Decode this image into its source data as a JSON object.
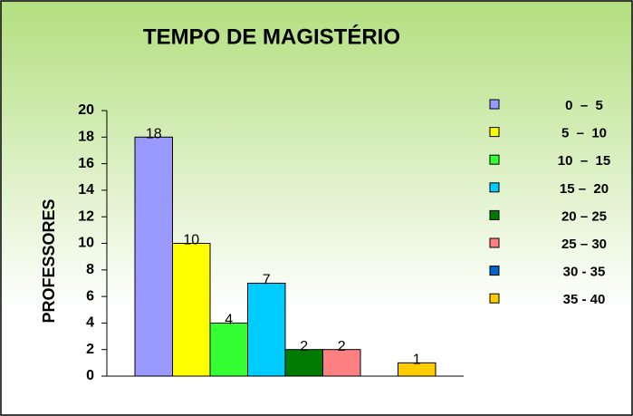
{
  "chart_data": {
    "type": "bar",
    "title": "TEMPO DE MAGISTÉRIO",
    "y_label": "PROFESSORES",
    "series": [
      {
        "name": "0  –  5",
        "color": "#9999ff",
        "values": [
          18
        ]
      },
      {
        "name": "5  –  10",
        "color": "#ffff00",
        "values": [
          10
        ]
      },
      {
        "name": "10  –  15",
        "color": "#33ff33",
        "values": [
          4
        ]
      },
      {
        "name": "15 –  20",
        "color": "#00ccff",
        "values": [
          7
        ]
      },
      {
        "name": "20 – 25",
        "color": "#007a00",
        "values": [
          2
        ]
      },
      {
        "name": "25 – 30",
        "color": "#ff8080",
        "values": [
          2
        ]
      },
      {
        "name": "30 - 35",
        "color": "#0066cc",
        "values": [
          null
        ]
      },
      {
        "name": "35 - 40",
        "color": "#ffcc00",
        "values": [
          1
        ]
      }
    ],
    "ylim": [
      0,
      20
    ],
    "yticks": [
      0,
      2,
      4,
      6,
      8,
      10,
      12,
      14,
      16,
      18,
      20
    ],
    "grid": false,
    "legend": "right"
  }
}
